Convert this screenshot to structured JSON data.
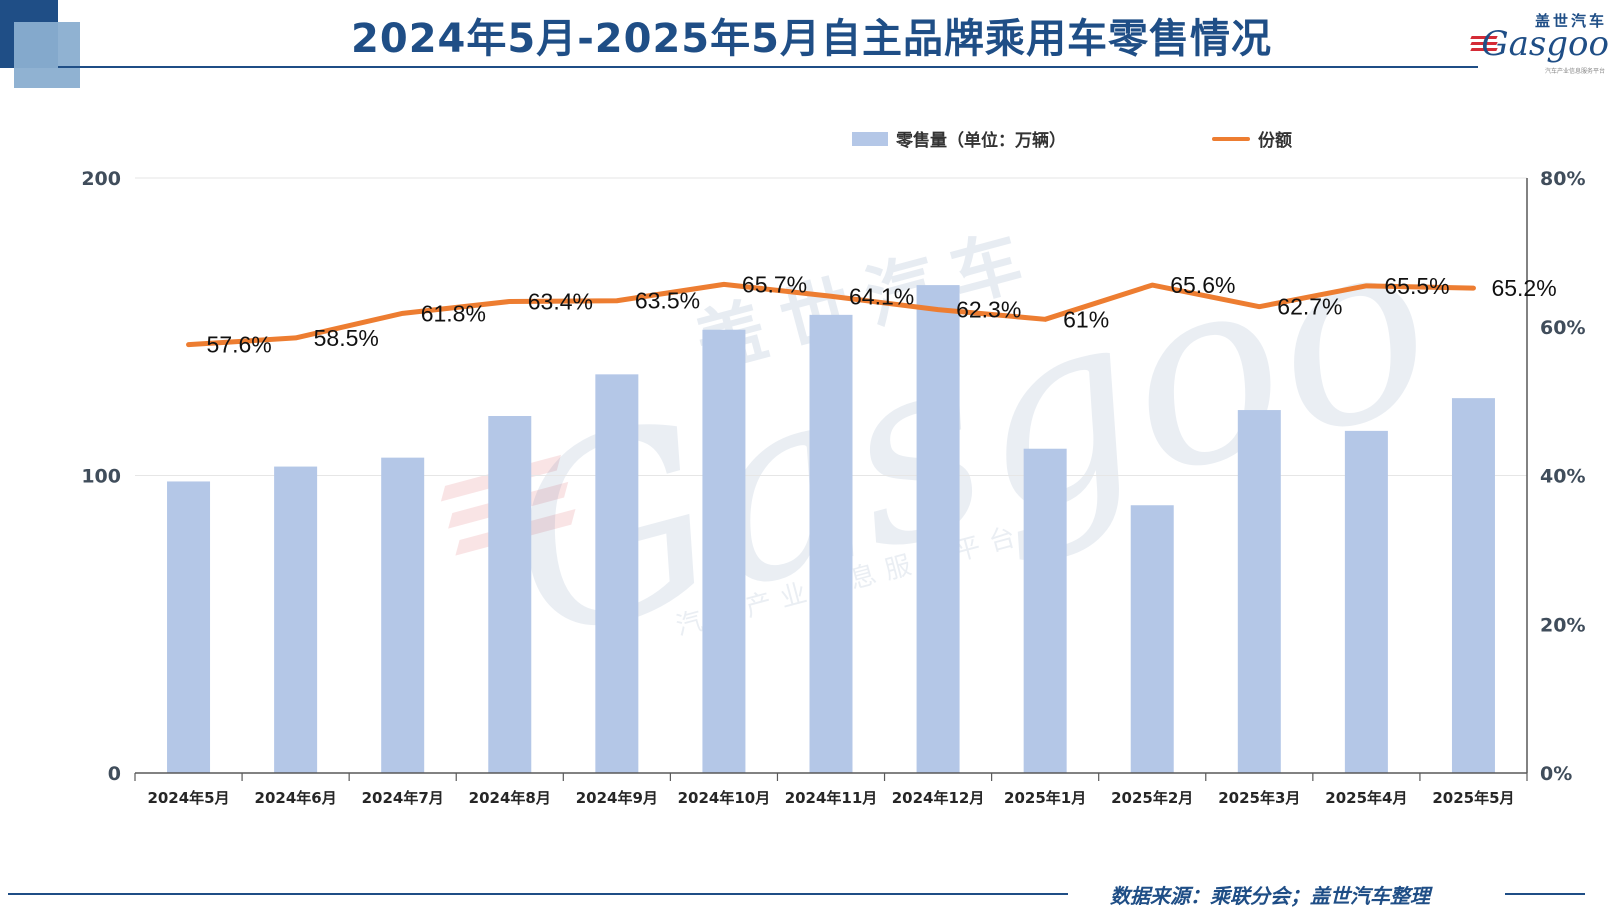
{
  "header": {
    "title": "2024年5月-2025年5月自主品牌乘用车零售情况"
  },
  "logo": {
    "cn": "盖世汽车",
    "en": "Gasgoo",
    "tagline": "汽车产业信息服务平台"
  },
  "watermark": {
    "cn": "盖世汽车",
    "en": "Gasgoo",
    "tagline": "汽车产业信息服务平台"
  },
  "chart_data": {
    "type": "bar",
    "categories": [
      "2024年5月",
      "2024年6月",
      "2024年7月",
      "2024年8月",
      "2024年9月",
      "2024年10月",
      "2024年11月",
      "2024年12月",
      "2025年1月",
      "2025年2月",
      "2025年3月",
      "2025年4月",
      "2025年5月"
    ],
    "series": [
      {
        "name": "零售量（单位：万辆）",
        "type": "bar",
        "axis": "left",
        "color": "#b4c7e7",
        "values": [
          98,
          103,
          106,
          120,
          134,
          149,
          154,
          164,
          109,
          90,
          122,
          115,
          126
        ]
      },
      {
        "name": "份额",
        "type": "line",
        "axis": "right",
        "color": "#ed7d31",
        "values": [
          57.6,
          58.5,
          61.8,
          63.4,
          63.5,
          65.7,
          64.1,
          62.3,
          61,
          65.6,
          62.7,
          65.5,
          65.2
        ],
        "labels": [
          "57.6%",
          "58.5%",
          "61.8%",
          "63.4%",
          "63.5%",
          "65.7%",
          "64.1%",
          "62.3%",
          "61%",
          "65.6%",
          "62.7%",
          "65.5%",
          "65.2%"
        ]
      }
    ],
    "y_left": {
      "min": 0,
      "max": 200,
      "ticks": [
        "0",
        "100",
        "200"
      ],
      "tick_values": [
        0,
        100,
        200
      ]
    },
    "y_right": {
      "min": 0,
      "max": 80,
      "ticks": [
        "0%",
        "20%",
        "40%",
        "60%",
        "80%"
      ],
      "tick_values": [
        0,
        20,
        40,
        60,
        80
      ]
    },
    "grid": true,
    "legend_position": "top"
  },
  "footer": {
    "source": "数据来源：乘联分会；盖世汽车整理"
  },
  "colors": {
    "brand_blue": "#1f4e86",
    "bar": "#b4c7e7",
    "line": "#ed7d31"
  }
}
